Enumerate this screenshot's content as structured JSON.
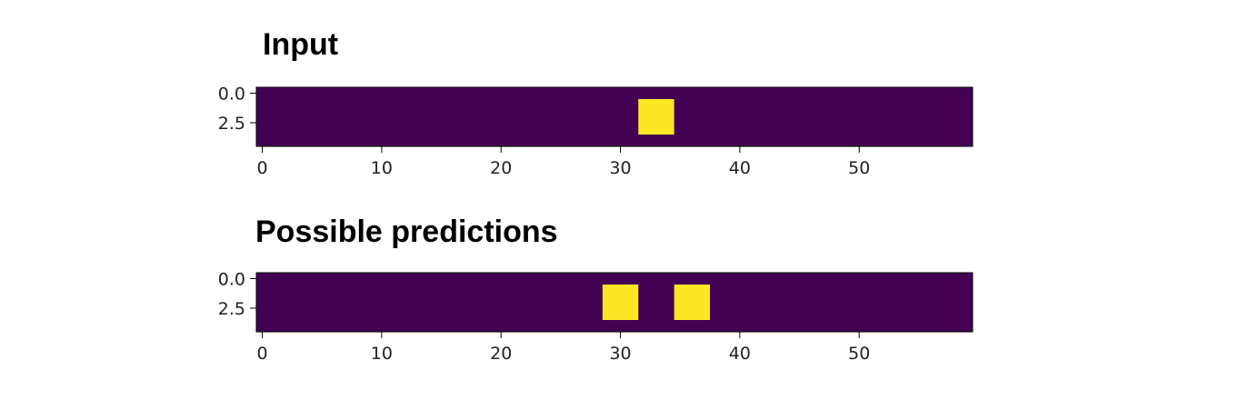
{
  "panels": [
    {
      "title": "Input"
    },
    {
      "title": "Possible predictions"
    }
  ],
  "chart_data": [
    {
      "type": "heatmap",
      "title": "Input",
      "xlim": [
        -0.5,
        59.5
      ],
      "ylim": [
        4.5,
        -0.5
      ],
      "xticks": [
        0,
        10,
        20,
        30,
        40,
        50
      ],
      "yticks": [
        0.0,
        2.5
      ],
      "xtick_labels": [
        "0",
        "10",
        "20",
        "30",
        "40",
        "50"
      ],
      "ytick_labels": [
        "0.0",
        "2.5"
      ],
      "colormap": "viridis",
      "background_color": "#440154",
      "highlight_color": "#fde725",
      "grid": false,
      "highlights": [
        {
          "x": [
            32,
            34
          ],
          "y": [
            1,
            3
          ]
        }
      ]
    },
    {
      "type": "heatmap",
      "title": "Possible predictions",
      "xlim": [
        -0.5,
        59.5
      ],
      "ylim": [
        4.5,
        -0.5
      ],
      "xticks": [
        0,
        10,
        20,
        30,
        40,
        50
      ],
      "yticks": [
        0.0,
        2.5
      ],
      "xtick_labels": [
        "0",
        "10",
        "20",
        "30",
        "40",
        "50"
      ],
      "ytick_labels": [
        "0.0",
        "2.5"
      ],
      "colormap": "viridis",
      "background_color": "#440154",
      "highlight_color": "#fde725",
      "grid": false,
      "highlights": [
        {
          "x": [
            29,
            31
          ],
          "y": [
            1,
            3
          ]
        },
        {
          "x": [
            35,
            37
          ],
          "y": [
            1,
            3
          ]
        }
      ]
    }
  ]
}
